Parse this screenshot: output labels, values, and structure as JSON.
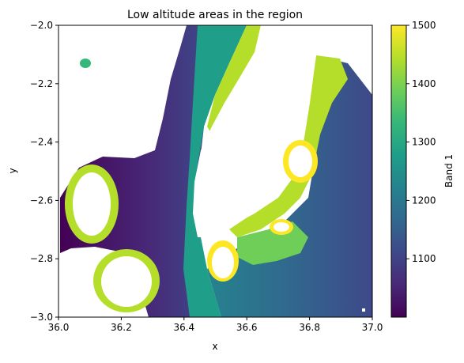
{
  "chart_data": {
    "type": "heatmap",
    "title": "Low altitude areas in the region",
    "xlabel": "x",
    "ylabel": "y",
    "xlim": [
      36.0,
      37.0
    ],
    "ylim": [
      -3.0,
      -2.0
    ],
    "x_ticks": [
      {
        "value": 36.0,
        "label": "36.0"
      },
      {
        "value": 36.2,
        "label": "36.2"
      },
      {
        "value": 36.4,
        "label": "36.4"
      },
      {
        "value": 36.6,
        "label": "36.6"
      },
      {
        "value": 36.8,
        "label": "36.8"
      },
      {
        "value": 37.0,
        "label": "37.0"
      }
    ],
    "y_ticks": [
      {
        "value": -2.0,
        "label": "−2.0"
      },
      {
        "value": -2.2,
        "label": "−2.2"
      },
      {
        "value": -2.4,
        "label": "−2.4"
      },
      {
        "value": -2.6,
        "label": "−2.6"
      },
      {
        "value": -2.8,
        "label": "−2.8"
      },
      {
        "value": -3.0,
        "label": "−3.0"
      }
    ],
    "colorbar": {
      "label": "Band 1",
      "colormap": "viridis",
      "vmin": 1000,
      "vmax": 1500,
      "ticks": [
        {
          "value": 1100,
          "label": "1100"
        },
        {
          "value": 1200,
          "label": "1200"
        },
        {
          "value": 1300,
          "label": "1300"
        },
        {
          "value": 1400,
          "label": "1400"
        },
        {
          "value": 1500,
          "label": "1500"
        }
      ]
    },
    "masked_value_color": "#ffffff",
    "colormap_stops": [
      "#440154",
      "#482878",
      "#3e4989",
      "#31688e",
      "#26828e",
      "#1f9e89",
      "#35b779",
      "#6ece58",
      "#b5de2b",
      "#fde725"
    ]
  }
}
